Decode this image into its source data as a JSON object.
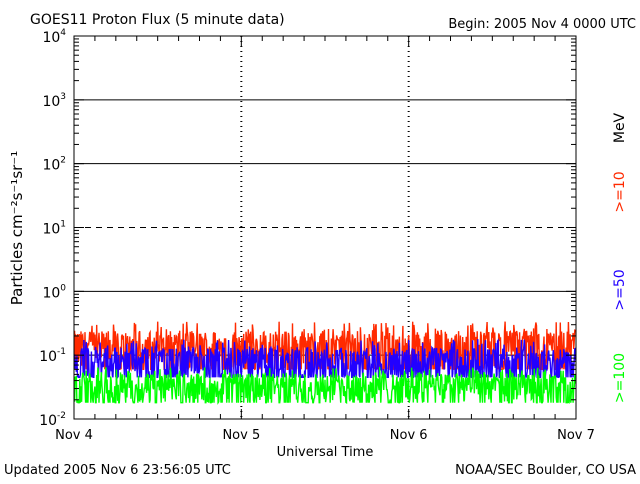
{
  "chart_data": {
    "type": "line",
    "title": "GOES11 Proton Flux (5 minute data)",
    "begin_label": "Begin: 2005 Nov 4 0000 UTC",
    "xlabel": "Universal Time",
    "ylabel": "Particles cm⁻²s⁻¹sr⁻¹",
    "x_categories": [
      "Nov 4",
      "Nov 5",
      "Nov 6",
      "Nov 7"
    ],
    "xlim_days": [
      0,
      3
    ],
    "y_scale": "log",
    "ylim": [
      0.01,
      10000
    ],
    "y_tick_labels": [
      {
        "base": "10",
        "exp": "-2",
        "value": 0.01
      },
      {
        "base": "10",
        "exp": "-1",
        "value": 0.1
      },
      {
        "base": "10",
        "exp": "0",
        "value": 1
      },
      {
        "base": "10",
        "exp": "1",
        "value": 10
      },
      {
        "base": "10",
        "exp": "2",
        "value": 100
      },
      {
        "base": "10",
        "exp": "3",
        "value": 1000
      },
      {
        "base": "10",
        "exp": "4",
        "value": 10000
      }
    ],
    "solid_gridlines": [
      1,
      100,
      1000
    ],
    "dashed_gridlines": [
      10
    ],
    "unit_label": "MeV",
    "series": [
      {
        "name": ">=10",
        "color": "#ff2a00",
        "baseline": 0.13,
        "spread": 0.14,
        "noise_high": 0.34,
        "noise_low": 0.06
      },
      {
        "name": ">=50",
        "color": "#2200ff",
        "baseline": 0.075,
        "spread": 0.07,
        "noise_high": 0.18,
        "noise_low": 0.045
      },
      {
        "name": ">=100",
        "color": "#00ff00",
        "baseline": 0.032,
        "spread": 0.025,
        "noise_high": 0.065,
        "noise_low": 0.018
      }
    ]
  },
  "footer": {
    "updated": "Updated 2005 Nov  6 23:56:05 UTC",
    "source": "NOAA/SEC Boulder, CO USA"
  }
}
